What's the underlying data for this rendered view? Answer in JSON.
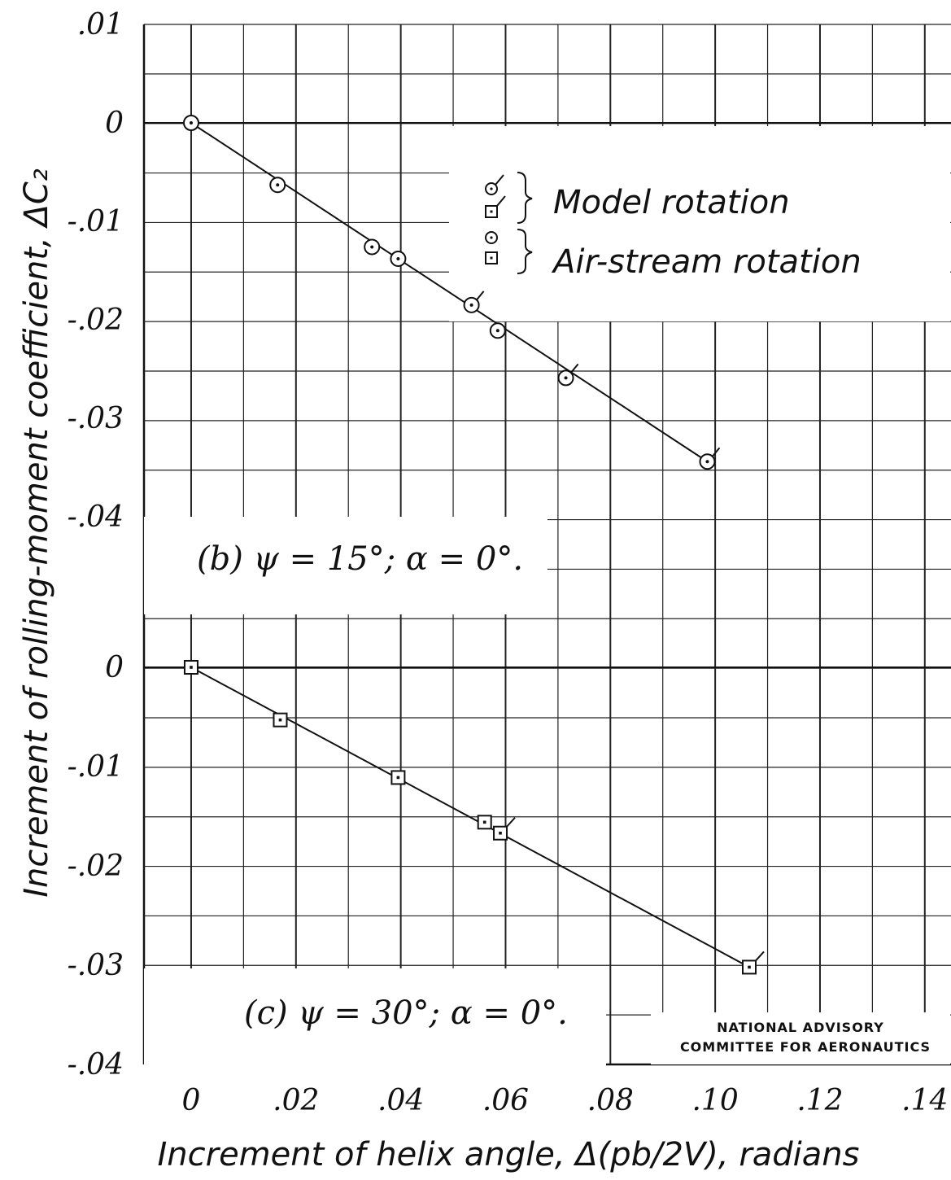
{
  "chart_data": {
    "type": "scatter",
    "xlabel": "Increment of helix angle, Δ(pb/2V), radians",
    "ylabel": "Increment of rolling-moment coefficient, ΔC₂",
    "x_ticks": [
      "0",
      ".02",
      ".04",
      ".06",
      ".08",
      ".10",
      ".12",
      ".14"
    ],
    "xlim": [
      -0.009,
      0.145
    ],
    "legend": {
      "placement": "top-right",
      "entries": [
        {
          "group": "Model rotation",
          "markers": [
            "circle-flag",
            "square-flag"
          ]
        },
        {
          "group": "Air-stream rotation",
          "markers": [
            "circle-dot",
            "square-dot"
          ]
        }
      ]
    },
    "panels": [
      {
        "label": "(b) ψ = 15°; α = 0°.",
        "marker": "circle",
        "ylim": [
          -0.04,
          0.01
        ],
        "y_ticks": [
          ".01",
          "0",
          "-.01",
          "-.02",
          "-.03",
          "-.04"
        ],
        "points": [
          {
            "x": 0.0,
            "y": 0.0,
            "flag": false
          },
          {
            "x": 0.0165,
            "y": -0.0063,
            "flag": false
          },
          {
            "x": 0.0345,
            "y": -0.0126,
            "flag": false
          },
          {
            "x": 0.0395,
            "y": -0.0138,
            "flag": false
          },
          {
            "x": 0.0535,
            "y": -0.0185,
            "flag": true
          },
          {
            "x": 0.0585,
            "y": -0.0211,
            "flag": false
          },
          {
            "x": 0.0715,
            "y": -0.0259,
            "flag": true
          },
          {
            "x": 0.0985,
            "y": -0.0344,
            "flag": true
          }
        ],
        "fit_line": [
          [
            0.0,
            0.0
          ],
          [
            0.0985,
            -0.0344
          ]
        ]
      },
      {
        "label": "(c) ψ = 30°; α = 0°.",
        "marker": "square",
        "ylim": [
          -0.04,
          0.0
        ],
        "y_ticks": [
          "0",
          "-.01",
          "-.02",
          "-.03",
          "-.04"
        ],
        "points": [
          {
            "x": 0.0,
            "y": 0.0,
            "flag": false
          },
          {
            "x": 0.017,
            "y": -0.0053,
            "flag": false
          },
          {
            "x": 0.0395,
            "y": -0.0111,
            "flag": false
          },
          {
            "x": 0.056,
            "y": -0.0156,
            "flag": false
          },
          {
            "x": 0.059,
            "y": -0.0167,
            "flag": true
          },
          {
            "x": 0.1065,
            "y": -0.0302,
            "flag": true
          }
        ],
        "fit_line": [
          [
            0.0,
            0.0
          ],
          [
            0.1065,
            -0.0302
          ]
        ]
      }
    ],
    "grid": true,
    "annotation": "NATIONAL ADVISORY COMMITTEE FOR AERONAUTICS"
  },
  "legend_labels": {
    "model": "Model rotation",
    "air": "Air-stream rotation"
  },
  "panel_labels": {
    "b": "(b) ψ = 15°; α = 0°.",
    "c": "(c) ψ = 30°; α = 0°."
  },
  "axis_labels": {
    "x": "Increment of helix angle, Δ(pb/2V), radians",
    "y": "Increment of rolling-moment coefficient, ΔC₂"
  },
  "stamp": {
    "line1": "NATIONAL ADVISORY",
    "line2": "COMMITTEE FOR AERONAUTICS"
  }
}
